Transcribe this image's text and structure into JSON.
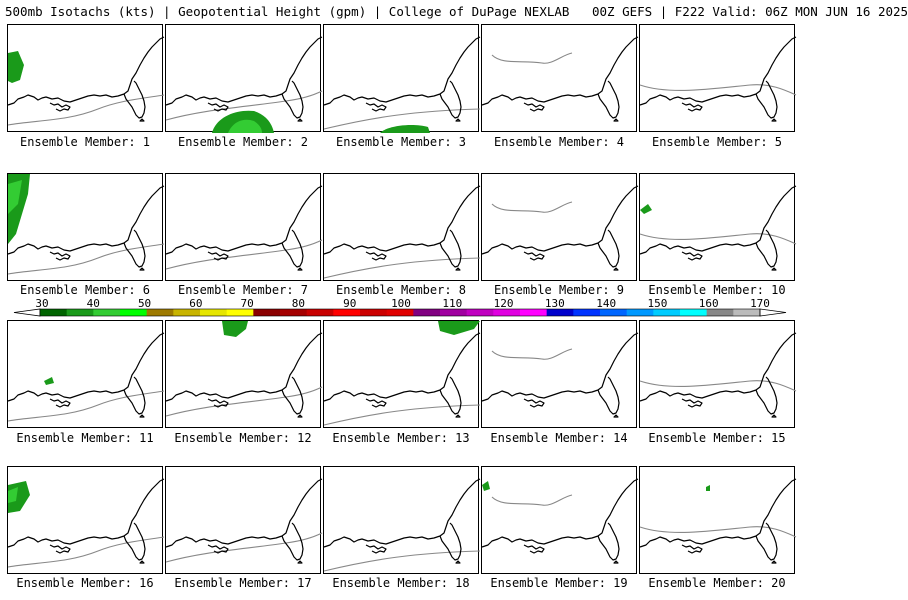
{
  "header": {
    "title": "500mb Isotachs (kts) | Geopotential Height (gpm) | College of DuPage NEXLAB   00Z GEFS | F222 Valid: 06Z MON JUN 16 2025"
  },
  "colorbar": {
    "labels": [
      "30",
      "40",
      "50",
      "60",
      "70",
      "80",
      "90",
      "100",
      "110",
      "120",
      "130",
      "140",
      "150",
      "160",
      "170"
    ],
    "colors": [
      "#006400",
      "#1a9a1a",
      "#33cc33",
      "#00ff00",
      "#9e7a00",
      "#c8b400",
      "#e6e600",
      "#ffff00",
      "#8b0000",
      "#a50000",
      "#c80000",
      "#ff0000",
      "#cc0000",
      "#e00000",
      "#800080",
      "#a000a0",
      "#c000c0",
      "#e000e0",
      "#ff00ff",
      "#0000cc",
      "#0033ff",
      "#0066ff",
      "#0099ff",
      "#00ccff",
      "#00ffff",
      "#888888",
      "#bbbbbb"
    ]
  },
  "members": [
    {
      "caption": "Ensemble Member: 1"
    },
    {
      "caption": "Ensemble Member: 2"
    },
    {
      "caption": "Ensemble Member: 3"
    },
    {
      "caption": "Ensemble Member: 4"
    },
    {
      "caption": "Ensemble Member: 5"
    },
    {
      "caption": "Ensemble Member: 6"
    },
    {
      "caption": "Ensemble Member: 7"
    },
    {
      "caption": "Ensemble Member: 8"
    },
    {
      "caption": "Ensemble Member: 9"
    },
    {
      "caption": "Ensemble Member: 10"
    },
    {
      "caption": "Ensemble Member: 11"
    },
    {
      "caption": "Ensemble Member: 12"
    },
    {
      "caption": "Ensemble Member: 13"
    },
    {
      "caption": "Ensemble Member: 14"
    },
    {
      "caption": "Ensemble Member: 15"
    },
    {
      "caption": "Ensemble Member: 16"
    },
    {
      "caption": "Ensemble Member: 17"
    },
    {
      "caption": "Ensemble Member: 18"
    },
    {
      "caption": "Ensemble Member: 19"
    },
    {
      "caption": "Ensemble Member: 20"
    }
  ],
  "styles": {
    "coastline": "#000000",
    "height_contour": "#888888",
    "isotach_fill_low": "#1a9a1a",
    "isotach_fill_mid": "#33cc33"
  }
}
